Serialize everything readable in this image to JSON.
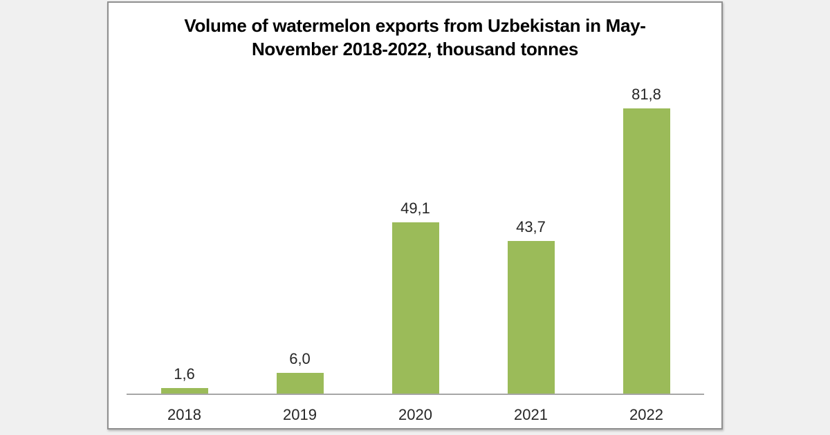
{
  "page": {
    "background_color": "#f0f0f0",
    "card_background": "#ffffff",
    "card_border_color": "#8f8f8f"
  },
  "chart": {
    "title_lines": [
      "Volume of watermelon exports from Uzbekistan in May-",
      "November 2018-2022, thousand tonnes"
    ]
  },
  "chart_data": {
    "type": "bar",
    "title": "Volume of watermelon exports from Uzbekistan in May-November 2018-2022, thousand tonnes",
    "categories": [
      "2018",
      "2019",
      "2020",
      "2021",
      "2022"
    ],
    "values": [
      1.6,
      6.0,
      49.1,
      43.7,
      81.8
    ],
    "value_labels": [
      "1,6",
      "6,0",
      "49,1",
      "43,7",
      "81,8"
    ],
    "xlabel": "",
    "ylabel": "",
    "unit": "thousand tonnes",
    "ylim": [
      0,
      90
    ],
    "grid": false,
    "legend": false,
    "y_axis_visible": false,
    "bar_color": "#9bbb59",
    "axis_line_color": "#a6a6a6",
    "label_color": "#262626",
    "title_color": "#000000"
  }
}
